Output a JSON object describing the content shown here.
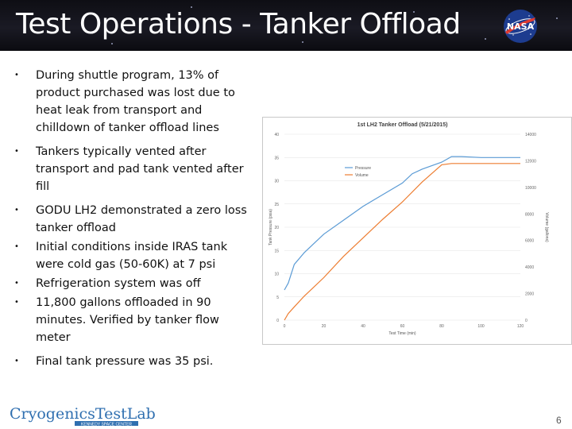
{
  "slide": {
    "title": "Test Operations - Tanker Offload",
    "page_number": "6",
    "footer_logo_text": "CryogenicsTestLab",
    "footer_logo_subtext": "KENNEDY SPACE CENTER",
    "nasa_logo_text": "NASA",
    "bullets": [
      "During shuttle program, 13% of product purchased was lost due to heat leak from transport and chilldown of tanker offload lines",
      "Tankers typically vented after transport and pad tank vented after fill",
      "GODU LH2 demonstrated a zero loss tanker offload",
      "Initial conditions inside IRAS tank were cold gas (50-60K) at 7 psi",
      "Refrigeration system was off",
      "11,800 gallons offloaded in 90 minutes.  Verified by tanker flow meter",
      "Final tank pressure was 35 psi."
    ]
  },
  "chart_data": {
    "type": "line",
    "title": "1st LH2 Tanker Offload (5/21/2015)",
    "xlabel": "Test Time (min)",
    "ylabel": "Tank Pressure (psia)",
    "y2label": "Volume (gallons)",
    "xlim": [
      0,
      120
    ],
    "ylim": [
      0,
      40
    ],
    "y2lim": [
      0,
      14000
    ],
    "xticks": [
      0,
      20,
      40,
      60,
      80,
      100,
      120
    ],
    "yticks": [
      0,
      5,
      10,
      15,
      20,
      25,
      30,
      35,
      40
    ],
    "y2ticks": [
      0,
      2000,
      4000,
      6000,
      8000,
      10000,
      12000,
      14000
    ],
    "legend_position": "top-left",
    "series": [
      {
        "name": "Pressure",
        "axis": "left",
        "color": "#5b9bd5",
        "x": [
          0,
          2,
          5,
          10,
          20,
          30,
          40,
          50,
          60,
          65,
          70,
          80,
          85,
          90,
          100,
          120
        ],
        "y": [
          6.5,
          8,
          12,
          14.5,
          18.5,
          21.5,
          24.5,
          27,
          29.5,
          31.5,
          32.5,
          34,
          35.2,
          35.2,
          35,
          35
        ]
      },
      {
        "name": "Volume",
        "axis": "right",
        "color": "#ed7d31",
        "x": [
          0,
          2,
          5,
          10,
          20,
          30,
          40,
          50,
          60,
          70,
          80,
          85,
          90,
          100,
          120
        ],
        "y": [
          0,
          500,
          1000,
          1800,
          3200,
          4800,
          6200,
          7600,
          8900,
          10400,
          11700,
          11800,
          11800,
          11800,
          11800
        ]
      }
    ]
  }
}
